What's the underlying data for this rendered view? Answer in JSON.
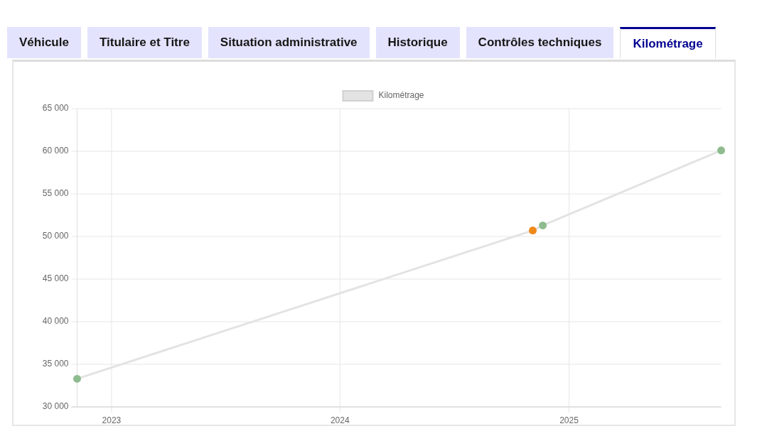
{
  "chart_data": {
    "type": "line",
    "title": "Kilométrage",
    "annotations": [
      "Véhicule",
      "Titulaire et Titre",
      "Situation administrative",
      "Historique",
      "Contrôles techniques"
    ],
    "x": [
      "2022-11-07",
      "2024-11-04",
      "2024-11-20",
      "2025-09-01"
    ],
    "series": [
      {
        "name": "Kilométrage",
        "color": "#e3e3e3",
        "colors": [
          "#8fbc8f",
          "#f0891a",
          "#8fbc8f",
          "#8fbc8f"
        ],
        "values": [
          33300,
          50700,
          51300,
          60100
        ]
      }
    ],
    "xlim": [
      "2022-11-07",
      "2025-09-01"
    ],
    "xticks": [
      "2023",
      "2024",
      "2025"
    ],
    "ylim": [
      30000,
      65000
    ],
    "yticks": [
      {
        "value": 30000,
        "label": "30 000"
      },
      {
        "value": 35000,
        "label": "35 000"
      },
      {
        "value": 40000,
        "label": "40 000"
      },
      {
        "value": 45000,
        "label": "45 000"
      },
      {
        "value": 50000,
        "label": "50 000"
      },
      {
        "value": 55000,
        "label": "55 000"
      },
      {
        "value": 60000,
        "label": "60 000"
      },
      {
        "value": 65000,
        "label": "65 000"
      }
    ],
    "grid": true,
    "legend": "top",
    "marker": "circle",
    "line_style": "solid"
  }
}
